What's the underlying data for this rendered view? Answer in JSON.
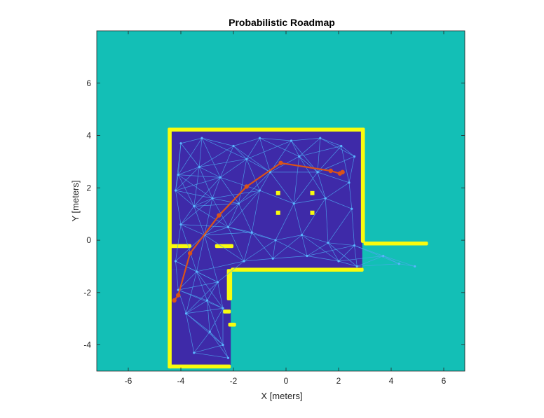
{
  "chart_data": {
    "type": "scatter",
    "title": "Probabilistic Roadmap",
    "xlabel": "X [meters]",
    "ylabel": "Y [meters]",
    "xlim": [
      -7.2,
      6.8
    ],
    "ylim": [
      -5.0,
      8.0
    ],
    "xticks": [
      -6,
      -4,
      -2,
      0,
      2,
      4,
      6
    ],
    "yticks": [
      -4,
      -2,
      0,
      2,
      4,
      6
    ],
    "grid": false,
    "colors": {
      "background_unknown": "#13bfb6",
      "free_space": "#3e2aa8",
      "occupied": "#f9fb0e",
      "roadmap_edges": "#4ea8f0",
      "roadmap_nodes": "#5bb5ff",
      "path": "#d95319"
    },
    "free_regions": [
      {
        "x": [
          -4.4,
          2.9
        ],
        "y": [
          -1.1,
          4.2
        ]
      },
      {
        "x": [
          -4.4,
          -2.1
        ],
        "y": [
          -4.8,
          -1.1
        ]
      }
    ],
    "walls": [
      {
        "x": [
          -4.45,
          2.95
        ],
        "y": [
          4.15,
          4.3
        ]
      },
      {
        "x": [
          2.85,
          3.0
        ],
        "y": [
          -0.1,
          4.3
        ]
      },
      {
        "x": [
          2.95,
          5.4
        ],
        "y": [
          -0.2,
          -0.05
        ]
      },
      {
        "x": [
          -2.1,
          2.95
        ],
        "y": [
          -1.2,
          -1.05
        ]
      },
      {
        "x": [
          -4.5,
          -4.35
        ],
        "y": [
          -4.9,
          4.3
        ]
      },
      {
        "x": [
          -2.25,
          -2.05
        ],
        "y": [
          -2.3,
          -1.1
        ]
      },
      {
        "x": [
          -4.45,
          -2.1
        ],
        "y": [
          -4.9,
          -4.75
        ]
      },
      {
        "x": [
          -4.45,
          -3.6
        ],
        "y": [
          -0.3,
          -0.15
        ]
      },
      {
        "x": [
          -2.7,
          -2.0
        ],
        "y": [
          -0.3,
          -0.15
        ]
      },
      {
        "x": [
          -2.2,
          -1.9
        ],
        "y": [
          -3.3,
          -3.15
        ]
      },
      {
        "x": [
          -2.4,
          -2.1
        ],
        "y": [
          -2.8,
          -2.65
        ]
      }
    ],
    "pillars": [
      {
        "x": -0.3,
        "y": 1.8
      },
      {
        "x": 1.0,
        "y": 1.8
      },
      {
        "x": -0.3,
        "y": 1.05
      },
      {
        "x": 1.0,
        "y": 1.05
      }
    ],
    "roadmap_nodes": [
      [
        -4.0,
        3.7
      ],
      [
        -3.2,
        3.9
      ],
      [
        -2.0,
        3.6
      ],
      [
        -1.0,
        3.9
      ],
      [
        0.2,
        3.8
      ],
      [
        1.3,
        3.9
      ],
      [
        2.1,
        3.6
      ],
      [
        2.6,
        3.2
      ],
      [
        -4.1,
        2.5
      ],
      [
        -3.3,
        2.8
      ],
      [
        -2.5,
        2.4
      ],
      [
        -1.5,
        3.1
      ],
      [
        -0.6,
        2.6
      ],
      [
        0.5,
        3.2
      ],
      [
        1.2,
        2.6
      ],
      [
        2.4,
        2.2
      ],
      [
        -4.2,
        1.9
      ],
      [
        -3.5,
        1.3
      ],
      [
        -2.8,
        1.6
      ],
      [
        -1.8,
        1.4
      ],
      [
        -1.0,
        1.9
      ],
      [
        0.3,
        1.4
      ],
      [
        1.5,
        1.6
      ],
      [
        2.5,
        1.2
      ],
      [
        -4.0,
        0.6
      ],
      [
        -3.1,
        0.2
      ],
      [
        -2.2,
        0.5
      ],
      [
        -1.3,
        0.3
      ],
      [
        -0.4,
        0.0
      ],
      [
        0.6,
        0.2
      ],
      [
        1.6,
        -0.1
      ],
      [
        2.6,
        -0.2
      ],
      [
        -1.6,
        -0.8
      ],
      [
        -0.5,
        -0.7
      ],
      [
        0.8,
        -0.6
      ],
      [
        2.0,
        -0.8
      ],
      [
        2.7,
        -1.0
      ],
      [
        -4.2,
        -0.8
      ],
      [
        -3.4,
        -1.2
      ],
      [
        -2.6,
        -1.6
      ],
      [
        -4.1,
        -1.9
      ],
      [
        -3.0,
        -2.3
      ],
      [
        -2.4,
        -2.6
      ],
      [
        -3.8,
        -2.8
      ],
      [
        -2.9,
        -3.5
      ],
      [
        -2.4,
        -4.0
      ],
      [
        -2.2,
        -4.5
      ],
      [
        -3.5,
        -4.3
      ],
      [
        3.7,
        -0.6
      ],
      [
        4.3,
        -0.9
      ],
      [
        4.9,
        -1.0
      ]
    ],
    "path": [
      [
        -4.25,
        -2.3
      ],
      [
        -4.1,
        -2.1
      ],
      [
        -3.65,
        -0.5
      ],
      [
        -2.55,
        0.95
      ],
      [
        -1.5,
        2.05
      ],
      [
        -0.2,
        2.95
      ],
      [
        1.7,
        2.65
      ],
      [
        2.05,
        2.55
      ],
      [
        2.15,
        2.6
      ]
    ]
  }
}
